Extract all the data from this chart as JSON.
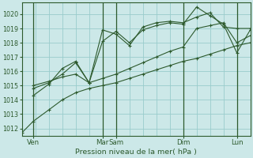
{
  "title": "",
  "xlabel": "Pression niveau de la mer( hPa )",
  "ylabel": "",
  "bg_color": "#cce8e8",
  "grid_color": "#99cccc",
  "line_color": "#2d5a2d",
  "ylim": [
    1011.5,
    1020.8
  ],
  "xlim": [
    0,
    8.5
  ],
  "yticks": [
    1012,
    1013,
    1014,
    1015,
    1016,
    1017,
    1018,
    1019,
    1020
  ],
  "xtick_positions": [
    0.42,
    3.0,
    3.5,
    6.0,
    8.0
  ],
  "xtick_labels": [
    "Ven",
    "Mar",
    "Sam",
    "Dim",
    "Lun"
  ],
  "vlines": [
    0.42,
    3.0,
    3.5,
    6.0,
    8.0
  ],
  "series": [
    {
      "x": [
        0.0,
        0.42,
        1.0,
        1.5,
        2.0,
        2.5,
        3.0,
        3.5,
        4.0,
        4.5,
        5.0,
        5.5,
        6.0,
        6.5,
        7.0,
        7.5,
        8.0,
        8.5
      ],
      "y": [
        1011.7,
        1012.5,
        1013.3,
        1014.0,
        1014.5,
        1014.8,
        1015.0,
        1015.2,
        1015.5,
        1015.8,
        1016.1,
        1016.4,
        1016.7,
        1016.9,
        1017.2,
        1017.5,
        1017.8,
        1018.0
      ]
    },
    {
      "x": [
        0.42,
        1.0,
        1.5,
        2.0,
        2.5,
        3.0,
        3.5,
        4.0,
        4.5,
        5.0,
        5.5,
        6.0,
        6.5,
        7.0,
        7.5,
        8.0,
        8.5
      ],
      "y": [
        1015.0,
        1015.3,
        1015.6,
        1015.8,
        1015.2,
        1015.5,
        1015.8,
        1016.2,
        1016.6,
        1017.0,
        1017.4,
        1017.7,
        1019.0,
        1019.2,
        1019.4,
        1018.0,
        1018.5
      ]
    },
    {
      "x": [
        0.42,
        1.0,
        1.5,
        2.0,
        2.5,
        3.0,
        3.5,
        4.0,
        4.5,
        5.0,
        5.5,
        6.0,
        6.5,
        7.0,
        7.5,
        8.0,
        8.5
      ],
      "y": [
        1014.3,
        1015.1,
        1016.2,
        1016.7,
        1015.2,
        1018.1,
        1018.8,
        1018.0,
        1018.9,
        1019.2,
        1019.4,
        1019.3,
        1020.5,
        1019.9,
        1019.3,
        1017.3,
        1018.9
      ]
    },
    {
      "x": [
        0.42,
        1.0,
        1.5,
        2.0,
        2.5,
        3.0,
        3.5,
        4.0,
        4.5,
        5.0,
        5.5,
        6.0,
        6.5,
        7.0,
        7.5,
        8.0,
        8.5
      ],
      "y": [
        1014.8,
        1015.2,
        1015.8,
        1016.6,
        1015.2,
        1018.9,
        1018.6,
        1017.8,
        1019.1,
        1019.4,
        1019.5,
        1019.4,
        1019.8,
        1020.1,
        1019.1,
        1019.0,
        1019.0
      ]
    }
  ]
}
